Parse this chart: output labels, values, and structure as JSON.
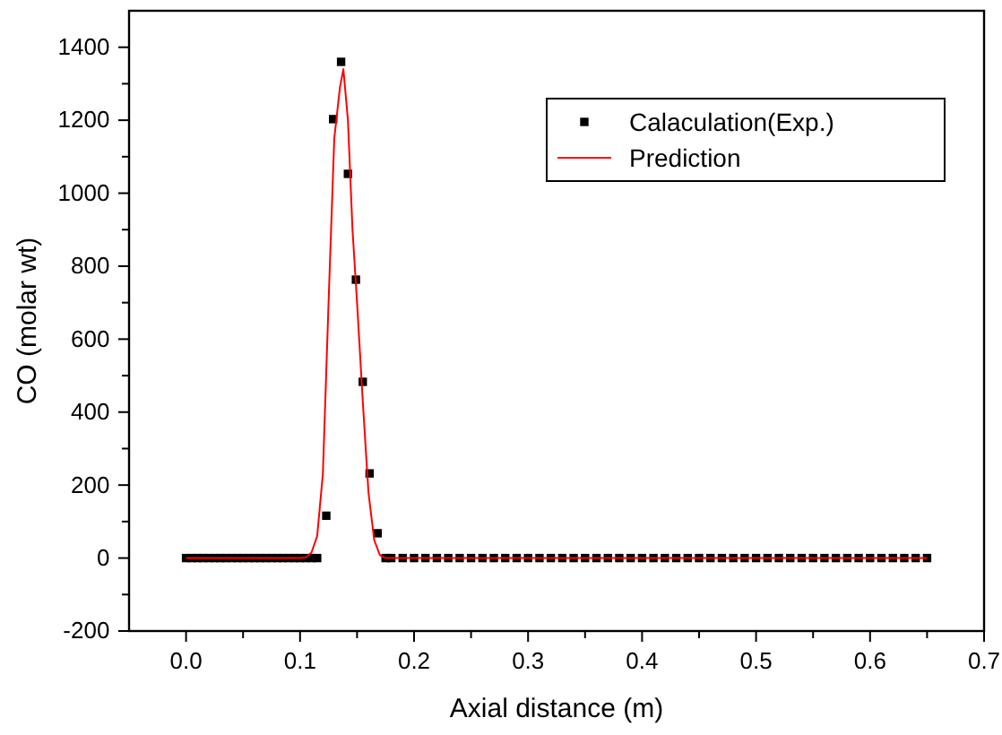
{
  "chart_data": {
    "type": "scatter",
    "xlabel": "Axial distance (m)",
    "ylabel": "CO (molar wt)",
    "xlim": [
      -0.05,
      0.7
    ],
    "ylim": [
      -200,
      1500
    ],
    "xticks": [
      {
        "value": 0,
        "label": "0.0"
      },
      {
        "value": 0.05,
        "label": null
      },
      0.1,
      {
        "value": 0.15,
        "label": null
      },
      0.2,
      {
        "value": 0.25,
        "label": null
      },
      0.3,
      {
        "value": 0.35,
        "label": null
      },
      0.4,
      {
        "value": 0.45,
        "label": null
      },
      0.5,
      {
        "value": 0.55,
        "label": null
      },
      0.6,
      {
        "value": 0.65,
        "label": null
      },
      0.7
    ],
    "yticks": [
      -200,
      {
        "value": -100,
        "label": null
      },
      0,
      {
        "value": 100,
        "label": null
      },
      200,
      {
        "value": 300,
        "label": null
      },
      400,
      {
        "value": 500,
        "label": null
      },
      600,
      {
        "value": 700,
        "label": null
      },
      800,
      {
        "value": 900,
        "label": null
      },
      1000,
      {
        "value": 1100,
        "label": null
      },
      1200,
      {
        "value": 1300,
        "label": null
      },
      1400
    ],
    "legend": "top right",
    "grid": false,
    "series": [
      {
        "name": "Calaculation(Exp.)",
        "marker": "square",
        "color": "#000000",
        "x": [
          0,
          0.005,
          0.01,
          0.015,
          0.02,
          0.025,
          0.03,
          0.035,
          0.04,
          0.045,
          0.05,
          0.055,
          0.06,
          0.065,
          0.07,
          0.075,
          0.08,
          0.085,
          0.09,
          0.095,
          0.1,
          0.105,
          0.11,
          0.115,
          0.123,
          0.129,
          0.136,
          0.142,
          0.149,
          0.155,
          0.161,
          0.168,
          0.175,
          0.18,
          0.19,
          0.2,
          0.21,
          0.22,
          0.23,
          0.24,
          0.25,
          0.26,
          0.27,
          0.28,
          0.29,
          0.3,
          0.31,
          0.32,
          0.33,
          0.34,
          0.35,
          0.36,
          0.37,
          0.38,
          0.39,
          0.4,
          0.41,
          0.42,
          0.43,
          0.44,
          0.45,
          0.46,
          0.47,
          0.48,
          0.49,
          0.5,
          0.51,
          0.52,
          0.53,
          0.54,
          0.55,
          0.56,
          0.57,
          0.58,
          0.59,
          0.6,
          0.61,
          0.62,
          0.63,
          0.64,
          0.65
        ],
        "values": [
          0,
          0,
          0,
          0,
          0,
          0,
          0,
          0,
          0,
          0,
          0,
          0,
          0,
          0,
          0,
          0,
          0,
          0,
          0,
          0,
          0,
          0,
          0,
          0,
          116,
          1203,
          1360,
          1053,
          763,
          483,
          232,
          68,
          0,
          0,
          0,
          0,
          0,
          0,
          0,
          0,
          0,
          0,
          0,
          0,
          0,
          0,
          0,
          0,
          0,
          0,
          0,
          0,
          0,
          0,
          0,
          0,
          0,
          0,
          0,
          0,
          0,
          0,
          0,
          0,
          0,
          0,
          0,
          0,
          0,
          0,
          0,
          0,
          0,
          0,
          0,
          0,
          0,
          0,
          0,
          0,
          0
        ]
      },
      {
        "name": "Prediction",
        "type": "line",
        "marker": "none",
        "line_style": "solid",
        "color": "#ff0000",
        "x": [
          0,
          0.1,
          0.105,
          0.11,
          0.115,
          0.12,
          0.125,
          0.13,
          0.135,
          0.138,
          0.142,
          0.146,
          0.15,
          0.155,
          0.16,
          0.165,
          0.17,
          0.175,
          0.65
        ],
        "values": [
          0,
          0,
          2,
          15,
          60,
          230,
          700,
          1150,
          1290,
          1340,
          1200,
          900,
          700,
          430,
          180,
          50,
          8,
          0,
          0
        ]
      }
    ]
  }
}
